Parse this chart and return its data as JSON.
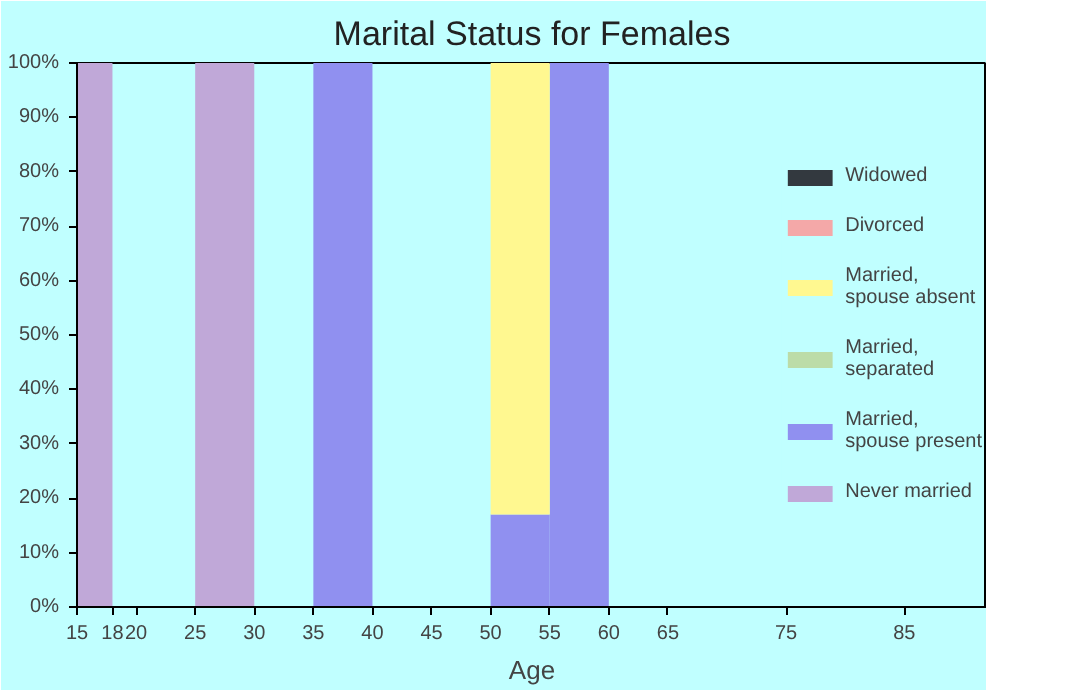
{
  "chart_data": {
    "type": "bar",
    "title": "Marital Status for Females",
    "xlabel": "Age",
    "stacked": true,
    "legend": "right",
    "grid": false,
    "x": [
      16.5,
      27.5,
      37.5,
      52.5,
      57.5
    ],
    "xlim": [
      15,
      92
    ],
    "xticks": [
      15,
      18,
      20,
      25,
      30,
      35,
      40,
      45,
      50,
      55,
      60,
      65,
      75,
      85
    ],
    "ylim": [
      0,
      100
    ],
    "yticks": [
      {
        "value": 0,
        "label": "0%"
      },
      {
        "value": 10,
        "label": "10%"
      },
      {
        "value": 20,
        "label": "20%"
      },
      {
        "value": 30,
        "label": "30%"
      },
      {
        "value": 40,
        "label": "40%"
      },
      {
        "value": 50,
        "label": "50%"
      },
      {
        "value": 60,
        "label": "60%"
      },
      {
        "value": 70,
        "label": "70%"
      },
      {
        "value": 80,
        "label": "80%"
      },
      {
        "value": 90,
        "label": "90%"
      },
      {
        "value": 100,
        "label": "100%"
      }
    ],
    "series": [
      {
        "name": "Never married",
        "color": "#c0a8d8",
        "values": [
          100,
          100,
          0,
          0,
          0
        ]
      },
      {
        "name": "Married,\nspouse present",
        "color": "#9090f0",
        "values": [
          0,
          0,
          100,
          17,
          100
        ]
      },
      {
        "name": "Married,\nseparated",
        "color": "#bcdca8",
        "values": [
          0,
          0,
          0,
          0,
          0
        ]
      },
      {
        "name": "Married,\nspouse absent",
        "color": "#fff890",
        "values": [
          0,
          0,
          0,
          83,
          0
        ]
      },
      {
        "name": "Divorced",
        "color": "#f4a8a8",
        "values": [
          0,
          0,
          0,
          0,
          0
        ]
      },
      {
        "name": "Widowed",
        "color": "#33393f",
        "values": [
          0,
          0,
          0,
          0,
          0
        ]
      }
    ]
  }
}
